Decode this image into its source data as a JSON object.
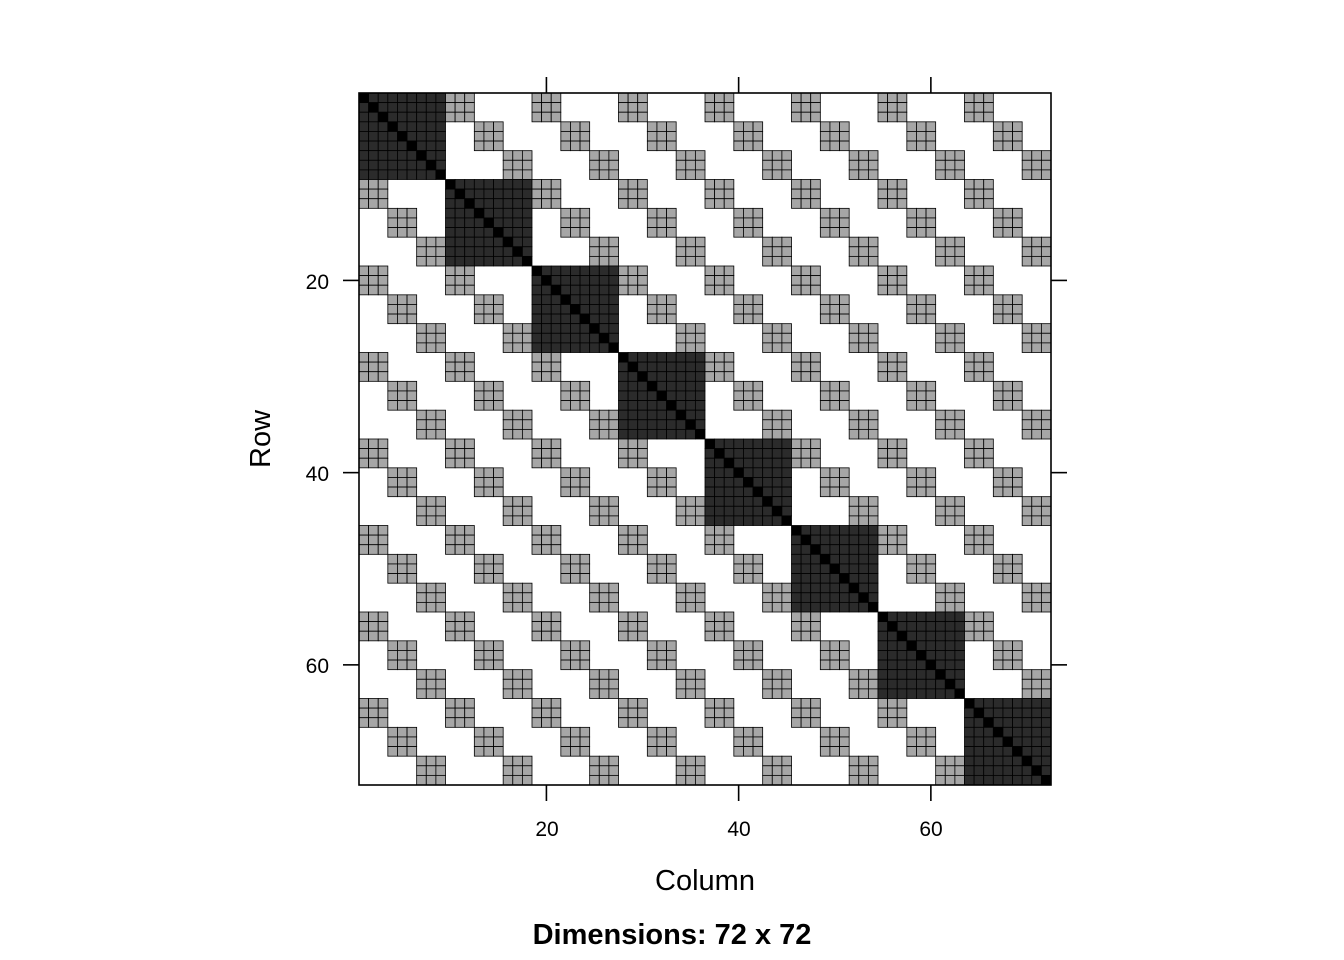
{
  "chart_data": {
    "type": "heatmap",
    "title": "",
    "subtitle": "Dimensions: 72 x 72",
    "xlabel": "Column",
    "ylabel": "Row",
    "nrow": 72,
    "ncol": 72,
    "xlim": [
      0.5,
      72.5
    ],
    "ylim": [
      72.5,
      0.5
    ],
    "x_ticks": [
      20,
      40,
      60
    ],
    "y_ticks": [
      20,
      40,
      60
    ],
    "x_tick_labels": [
      "20",
      "40",
      "60"
    ],
    "y_tick_labels": [
      "20",
      "40",
      "60"
    ],
    "grid": false,
    "structure": {
      "block_size": 9,
      "sub_block_size": 3,
      "diagonal_value": "black",
      "diagonal_block_value": "dark",
      "off_block_value": "light"
    },
    "colors": {
      "diagonal": "#000000",
      "diagonal_block": "#2b2b2b",
      "off_block": "#a6a6a6",
      "cell_border": "#000000",
      "background": "#ffffff"
    }
  }
}
